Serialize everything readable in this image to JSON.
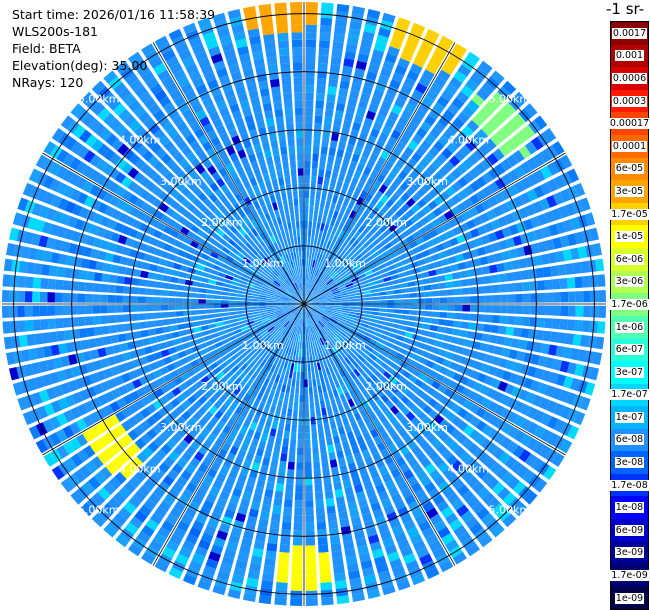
{
  "header": {
    "start_time": "Start time: 2026/01/16 11:58:39",
    "instrument": "WLS200s-181",
    "field": "Field: BETA",
    "elevation": "Elevation(deg): 35.00",
    "nrays": "NRays: 120"
  },
  "colorbar": {
    "unit_title": "-1 sr-",
    "levels": [
      {
        "label": "0.0017",
        "color": "#8b0000"
      },
      {
        "label": "0.001",
        "color": "#b00000"
      },
      {
        "label": "0.0006",
        "color": "#d80000"
      },
      {
        "label": "0.0003",
        "color": "#ff1a00"
      },
      {
        "label": "0.00017",
        "color": "#ff4500"
      },
      {
        "label": "0.0001",
        "color": "#ff6a00"
      },
      {
        "label": "6e-05",
        "color": "#ff8c00"
      },
      {
        "label": "3e-05",
        "color": "#ffa500"
      },
      {
        "label": "1.7e-05",
        "color": "#ffd000"
      },
      {
        "label": "1e-05",
        "color": "#ffff00"
      },
      {
        "label": "6e-06",
        "color": "#d8ff28"
      },
      {
        "label": "3e-06",
        "color": "#b0ff50"
      },
      {
        "label": "1.7e-06",
        "color": "#80ff80"
      },
      {
        "label": "1e-06",
        "color": "#50ffb0"
      },
      {
        "label": "6e-07",
        "color": "#28ffd8"
      },
      {
        "label": "3e-07",
        "color": "#00ffff"
      },
      {
        "label": "1.7e-07",
        "color": "#00d8ff"
      },
      {
        "label": "1e-07",
        "color": "#00b4ff"
      },
      {
        "label": "6e-08",
        "color": "#1e90ff"
      },
      {
        "label": "3e-08",
        "color": "#0064ff"
      },
      {
        "label": "1.7e-08",
        "color": "#0032ff"
      },
      {
        "label": "1e-08",
        "color": "#0000ff"
      },
      {
        "label": "6e-09",
        "color": "#0000cc"
      },
      {
        "label": "3e-09",
        "color": "#000096"
      },
      {
        "label": "1.7e-09",
        "color": "#000070"
      },
      {
        "label": "1e-09",
        "color": "#00004a"
      }
    ]
  },
  "chart_data": {
    "type": "heatmap",
    "projection": "polar PPI",
    "field": "BETA",
    "elevation_deg": 35.0,
    "n_rays": 120,
    "max_range_km": 5.2,
    "range_rings_km": [
      1.0,
      2.0,
      3.0,
      4.0,
      5.0
    ],
    "ring_labels": [
      "1.00km",
      "2.00km",
      "3.00km",
      "4.00km",
      "5.00km"
    ],
    "spoke_angles_deg": [
      0,
      30,
      60,
      90,
      120,
      150,
      180,
      210,
      240,
      270,
      300,
      330
    ],
    "background_level": "6e-08",
    "hotspots": [
      {
        "azimuth_deg_from_north": 355,
        "range_km": 5.05,
        "level": "3e-05"
      },
      {
        "azimuth_deg_from_north": 25,
        "range_km": 4.95,
        "level": "1.7e-05"
      },
      {
        "azimuth_deg_from_north": 48,
        "range_km": 4.6,
        "level": "1.7e-06"
      },
      {
        "azimuth_deg_from_north": 233,
        "range_km": 4.1,
        "level": "1e-05"
      },
      {
        "azimuth_deg_from_north": 180,
        "range_km": 4.55,
        "level": "1e-05"
      }
    ]
  }
}
